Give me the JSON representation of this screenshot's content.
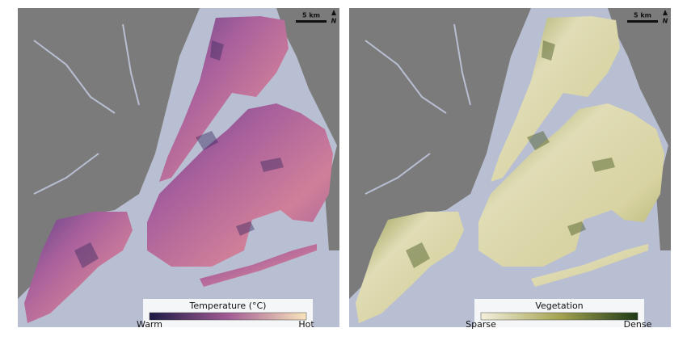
{
  "panels": [
    {
      "scale_bar": "5 km",
      "north": "N",
      "legend": {
        "title": "Temperature (°C)",
        "low": "Warm",
        "high": "Hot"
      }
    },
    {
      "scale_bar": "5 km",
      "north": "N",
      "legend": {
        "title": "Vegetation",
        "low": "Sparse",
        "high": "Dense"
      }
    }
  ]
}
